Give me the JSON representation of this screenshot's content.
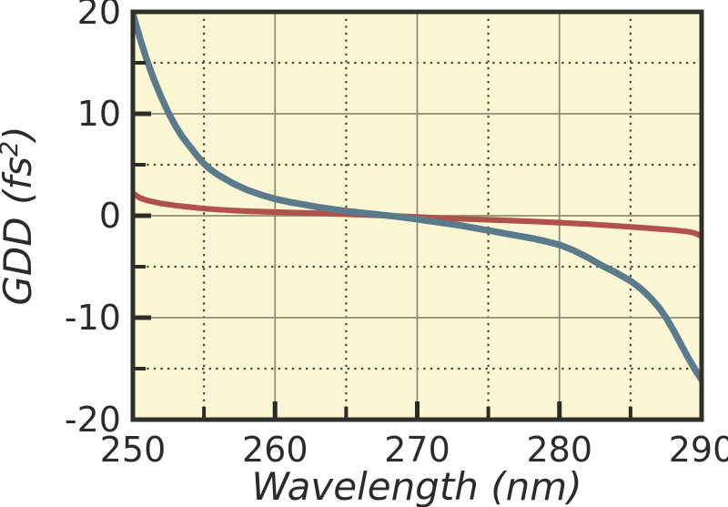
{
  "chart_data": {
    "type": "line",
    "title": "",
    "xlabel": "Wavelength (nm)",
    "ylabel": "GDD (fs²)",
    "ylabel_parts": [
      "GDD (fs",
      "2",
      ")"
    ],
    "xlim": [
      250,
      290
    ],
    "ylim": [
      -20,
      20
    ],
    "x_major_ticks": [
      250,
      260,
      270,
      280,
      290
    ],
    "x_major_labels": [
      "250",
      "260",
      "270",
      "280",
      "290"
    ],
    "x_minor_ticks": [
      255,
      265,
      275,
      285
    ],
    "y_major_ticks": [
      -20,
      -10,
      0,
      10,
      20
    ],
    "y_major_labels": [
      "-20",
      "-10",
      "0",
      "10",
      "20"
    ],
    "y_minor_ticks": [
      -15,
      -5,
      5,
      15
    ],
    "grid": {
      "major": "solid",
      "minor": "dotted"
    },
    "legend": "none",
    "colors": {
      "plot_background": "#fbf7d4",
      "frame": "#30302a",
      "major_grid": "#8e8e72",
      "minor_grid": "#4a4a38",
      "text": "#2b2b2b",
      "tick": "#2b2b22"
    },
    "series": [
      {
        "name": "red_flat_curve",
        "color": "#b0524a",
        "stroke_width": 6.2,
        "points": [
          [
            250,
            2.2
          ],
          [
            250.5,
            1.75
          ],
          [
            251,
            1.5
          ],
          [
            251.5,
            1.35
          ],
          [
            252,
            1.2
          ],
          [
            253,
            1.0
          ],
          [
            254,
            0.85
          ],
          [
            255,
            0.7
          ],
          [
            256,
            0.6
          ],
          [
            257,
            0.52
          ],
          [
            258,
            0.45
          ],
          [
            259,
            0.4
          ],
          [
            260,
            0.36
          ],
          [
            262,
            0.28
          ],
          [
            264,
            0.2
          ],
          [
            266,
            0.1
          ],
          [
            268,
            0.0
          ],
          [
            270,
            -0.12
          ],
          [
            272,
            -0.25
          ],
          [
            274,
            -0.35
          ],
          [
            276,
            -0.45
          ],
          [
            278,
            -0.55
          ],
          [
            280,
            -0.68
          ],
          [
            282,
            -0.82
          ],
          [
            284,
            -1.0
          ],
          [
            286,
            -1.2
          ],
          [
            288,
            -1.4
          ],
          [
            289,
            -1.55
          ],
          [
            289.5,
            -1.7
          ],
          [
            290,
            -2.0
          ]
        ]
      },
      {
        "name": "blue_steep_curve",
        "color": "#5b7a8c",
        "stroke_width": 7.3,
        "points": [
          [
            250,
            19.8
          ],
          [
            250.5,
            17.4
          ],
          [
            251,
            15.2
          ],
          [
            251.5,
            13.3
          ],
          [
            252,
            11.6
          ],
          [
            252.5,
            10.1
          ],
          [
            253,
            8.8
          ],
          [
            253.5,
            7.7
          ],
          [
            254,
            6.8
          ],
          [
            254.5,
            5.9
          ],
          [
            255,
            5.1
          ],
          [
            255.5,
            4.5
          ],
          [
            256,
            4.0
          ],
          [
            257,
            3.2
          ],
          [
            258,
            2.55
          ],
          [
            259,
            2.05
          ],
          [
            260,
            1.65
          ],
          [
            261,
            1.35
          ],
          [
            262,
            1.1
          ],
          [
            263,
            0.85
          ],
          [
            264,
            0.65
          ],
          [
            265,
            0.45
          ],
          [
            266,
            0.3
          ],
          [
            267,
            0.15
          ],
          [
            268,
            0.0
          ],
          [
            269,
            -0.15
          ],
          [
            270,
            -0.35
          ],
          [
            271,
            -0.55
          ],
          [
            272,
            -0.75
          ],
          [
            273,
            -0.95
          ],
          [
            274,
            -1.2
          ],
          [
            275,
            -1.45
          ],
          [
            276,
            -1.7
          ],
          [
            277,
            -1.95
          ],
          [
            278,
            -2.2
          ],
          [
            279,
            -2.5
          ],
          [
            280,
            -2.85
          ],
          [
            281,
            -3.4
          ],
          [
            282,
            -4.1
          ],
          [
            283,
            -4.9
          ],
          [
            284,
            -5.6
          ],
          [
            285,
            -6.4
          ],
          [
            285.5,
            -6.9
          ],
          [
            286,
            -7.5
          ],
          [
            286.5,
            -8.2
          ],
          [
            287,
            -9.0
          ],
          [
            287.5,
            -10.0
          ],
          [
            288,
            -11.2
          ],
          [
            288.5,
            -12.5
          ],
          [
            289,
            -13.8
          ],
          [
            289.5,
            -15.0
          ],
          [
            290,
            -16.1
          ]
        ]
      }
    ]
  }
}
